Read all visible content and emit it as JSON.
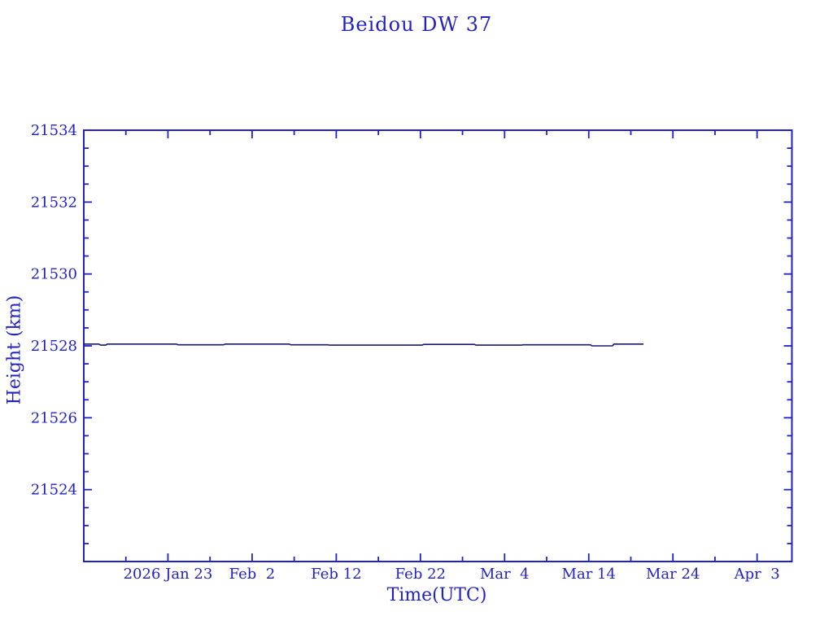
{
  "page": {
    "background_color": "#ffffff"
  },
  "chart": {
    "title": "Beidou DW 37",
    "ylabel": "Height (km)",
    "xlabel": "Time(UTC)",
    "axis_color": "#2222c2",
    "line_color": "#191970"
  },
  "chart_data": {
    "type": "line",
    "title": "Beidou DW 37",
    "xlabel": "Time(UTC)",
    "ylabel": "Height (km)",
    "grid": false,
    "legend": "none",
    "ylim": [
      21522,
      21534
    ],
    "y_major_ticks": [
      21524,
      21526,
      21528,
      21530,
      21532,
      21534
    ],
    "y_minor_step": 0.5,
    "x_axis_note": "day offsets measured from left edge of plot box; day 0 = 2026 Jan 13, right edge = day 84.14",
    "xlim_days": [
      0,
      84.14
    ],
    "x_major_ticks": [
      {
        "day": 10,
        "label": "2026 Jan 23"
      },
      {
        "day": 20,
        "label": "Feb  2"
      },
      {
        "day": 30,
        "label": "Feb 12"
      },
      {
        "day": 40,
        "label": "Feb 22"
      },
      {
        "day": 50,
        "label": "Mar  4"
      },
      {
        "day": 60,
        "label": "Mar 14"
      },
      {
        "day": 70,
        "label": "Mar 24"
      },
      {
        "day": 80,
        "label": "Apr  3"
      }
    ],
    "x_minor_tick_days": [
      5,
      15,
      25,
      35,
      45,
      55,
      65,
      75
    ],
    "series": [
      {
        "name": "Beidou DW 37 height",
        "color": "#191970",
        "points_day_height_km": [
          [
            0.0,
            21528.05
          ],
          [
            1.8,
            21528.05
          ],
          [
            2.0,
            21528.02
          ],
          [
            2.6,
            21528.02
          ],
          [
            2.8,
            21528.05
          ],
          [
            11.0,
            21528.05
          ],
          [
            11.2,
            21528.03
          ],
          [
            16.6,
            21528.03
          ],
          [
            16.8,
            21528.05
          ],
          [
            24.4,
            21528.05
          ],
          [
            24.6,
            21528.03
          ],
          [
            29.0,
            21528.03
          ],
          [
            29.2,
            21528.02
          ],
          [
            40.2,
            21528.02
          ],
          [
            40.4,
            21528.04
          ],
          [
            46.4,
            21528.04
          ],
          [
            46.6,
            21528.02
          ],
          [
            52.0,
            21528.02
          ],
          [
            52.2,
            21528.03
          ],
          [
            60.2,
            21528.03
          ],
          [
            60.4,
            21528.0
          ],
          [
            62.8,
            21528.0
          ],
          [
            63.0,
            21528.05
          ],
          [
            66.5,
            21528.05
          ]
        ]
      }
    ]
  }
}
